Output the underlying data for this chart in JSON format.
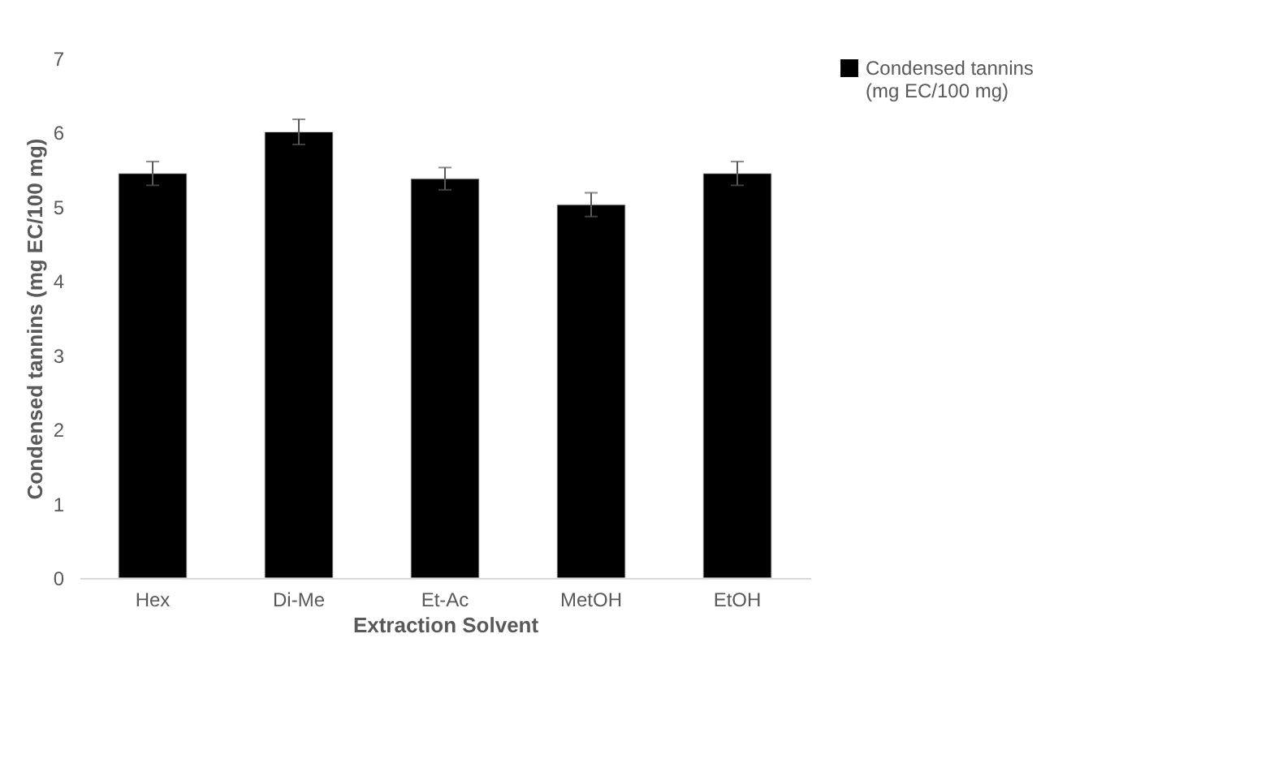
{
  "chart_data": {
    "type": "bar",
    "xlabel": "Extraction Solvent",
    "ylabel": "Condensed tannins (mg EC/100 mg)",
    "categories": [
      "Hex",
      "Di-Me",
      "Et-Ac",
      "MetOH",
      "EtOH"
    ],
    "series": [
      {
        "name": "Condensed tannins (mg EC/100 mg)",
        "color": "#000000",
        "values": [
          5.45,
          6.01,
          5.38,
          5.03,
          5.45
        ],
        "errors": [
          0.16,
          0.17,
          0.15,
          0.16,
          0.16
        ]
      }
    ],
    "ylim": [
      0,
      7
    ],
    "yticks": [
      0,
      1,
      2,
      3,
      4,
      5,
      6,
      7
    ],
    "grid": false,
    "legend": "right"
  }
}
